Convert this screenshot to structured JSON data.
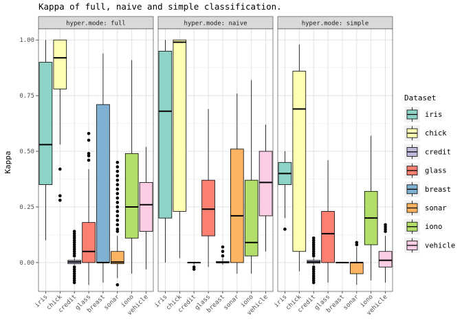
{
  "chart_data": {
    "type": "box",
    "title": "Kappa of full, naive and simple classification.",
    "ylabel": "Kappa",
    "xlabel": "",
    "ylim": [
      -0.13,
      1.05
    ],
    "y_ticks": [
      "0.00",
      "0.25",
      "0.50",
      "0.75",
      "1.00"
    ],
    "y_tick_values": [
      0,
      0.25,
      0.5,
      0.75,
      1.0
    ],
    "grid": true,
    "legend_position": "right",
    "legend_title": "Dataset",
    "categories": [
      "iris",
      "chick",
      "credit",
      "glass",
      "breast",
      "sonar",
      "iono",
      "vehicle"
    ],
    "colors": {
      "iris": "#8DD3C7",
      "chick": "#FFFFB3",
      "credit": "#BEBADA",
      "glass": "#FB8072",
      "breast": "#80B1D3",
      "sonar": "#FDB462",
      "iono": "#B3DE69",
      "vehicle": "#FCCDE5"
    },
    "facets": [
      {
        "strip": "hyper.mode: full",
        "boxes": [
          {
            "dataset": "iris",
            "whisker_low": 0.1,
            "q1": 0.35,
            "median": 0.53,
            "q3": 0.9,
            "whisker_high": 1.0,
            "outliers": []
          },
          {
            "dataset": "chick",
            "whisker_low": 0.53,
            "q1": 0.78,
            "median": 0.92,
            "q3": 1.0,
            "whisker_high": 1.0,
            "outliers": [
              0.42,
              0.3,
              0.28
            ]
          },
          {
            "dataset": "credit",
            "whisker_low": -0.01,
            "q1": -0.005,
            "median": 0.003,
            "q3": 0.01,
            "whisker_high": 0.02,
            "outliers": [
              0.14,
              0.13,
              0.12,
              0.11,
              0.1,
              0.09,
              0.08,
              0.07,
              0.06,
              0.05,
              0.04,
              0.03,
              -0.02,
              -0.03,
              -0.04,
              -0.05,
              -0.06,
              -0.07,
              -0.08,
              -0.09
            ]
          },
          {
            "dataset": "glass",
            "whisker_low": -0.1,
            "q1": 0.0,
            "median": 0.05,
            "q3": 0.18,
            "whisker_high": 0.42,
            "outliers": [
              0.58,
              0.55,
              0.49,
              0.48,
              0.46
            ]
          },
          {
            "dataset": "breast",
            "whisker_low": -0.09,
            "q1": 0.0,
            "median": 0.0,
            "q3": 0.71,
            "whisker_high": 0.94,
            "outliers": []
          },
          {
            "dataset": "sonar",
            "whisker_low": -0.07,
            "q1": -0.005,
            "median": 0.002,
            "q3": 0.05,
            "whisker_high": 0.12,
            "outliers": [
              0.45,
              0.43,
              0.41,
              0.39,
              0.37,
              0.35,
              0.33,
              0.31,
              0.29,
              0.27,
              0.25,
              0.23,
              0.21,
              0.19,
              0.17,
              0.15,
              0.14,
              -0.1
            ]
          },
          {
            "dataset": "iono",
            "whisker_low": -0.05,
            "q1": 0.11,
            "median": 0.25,
            "q3": 0.49,
            "whisker_high": 0.91,
            "outliers": []
          },
          {
            "dataset": "vehicle",
            "whisker_low": -0.03,
            "q1": 0.14,
            "median": 0.26,
            "q3": 0.36,
            "whisker_high": 0.52,
            "outliers": []
          }
        ]
      },
      {
        "strip": "hyper.mode: naive",
        "boxes": [
          {
            "dataset": "iris",
            "whisker_low": 0.0,
            "q1": 0.2,
            "median": 0.68,
            "q3": 0.95,
            "whisker_high": 1.0,
            "outliers": []
          },
          {
            "dataset": "chick",
            "whisker_low": 0.02,
            "q1": 0.23,
            "median": 0.99,
            "q3": 1.0,
            "whisker_high": 1.0,
            "outliers": []
          },
          {
            "dataset": "credit",
            "whisker_low": -0.01,
            "q1": 0.0,
            "median": 0.0,
            "q3": 0.0,
            "whisker_high": 0.0,
            "outliers": [
              -0.02,
              -0.03
            ]
          },
          {
            "dataset": "glass",
            "whisker_low": -0.02,
            "q1": 0.12,
            "median": 0.24,
            "q3": 0.37,
            "whisker_high": 0.69,
            "outliers": []
          },
          {
            "dataset": "breast",
            "whisker_low": -0.01,
            "q1": 0.0,
            "median": 0.0,
            "q3": 0.005,
            "whisker_high": 0.02,
            "outliers": [
              0.07,
              0.05,
              0.03
            ]
          },
          {
            "dataset": "sonar",
            "whisker_low": -0.05,
            "q1": 0.0,
            "median": 0.21,
            "q3": 0.51,
            "whisker_high": 0.76,
            "outliers": []
          },
          {
            "dataset": "iono",
            "whisker_low": -0.05,
            "q1": 0.03,
            "median": 0.09,
            "q3": 0.37,
            "whisker_high": 0.82,
            "outliers": []
          },
          {
            "dataset": "vehicle",
            "whisker_low": 0.05,
            "q1": 0.21,
            "median": 0.36,
            "q3": 0.5,
            "whisker_high": 0.62,
            "outliers": []
          }
        ]
      },
      {
        "strip": "hyper.mode: simple",
        "boxes": [
          {
            "dataset": "iris",
            "whisker_low": 0.2,
            "q1": 0.35,
            "median": 0.4,
            "q3": 0.45,
            "whisker_high": 0.5,
            "outliers": [
              0.15
            ]
          },
          {
            "dataset": "chick",
            "whisker_low": -0.04,
            "q1": 0.05,
            "median": 0.69,
            "q3": 0.86,
            "whisker_high": 0.98,
            "outliers": []
          },
          {
            "dataset": "credit",
            "whisker_low": -0.01,
            "q1": -0.003,
            "median": 0.003,
            "q3": 0.01,
            "whisker_high": 0.02,
            "outliers": [
              0.11,
              0.1,
              0.09,
              0.08,
              0.07,
              0.06,
              0.05,
              0.04,
              0.03,
              -0.02,
              -0.03,
              -0.04,
              -0.05,
              -0.06,
              -0.07,
              -0.08,
              -0.09
            ]
          },
          {
            "dataset": "glass",
            "whisker_low": -0.09,
            "q1": 0.0,
            "median": 0.13,
            "q3": 0.23,
            "whisker_high": 0.46,
            "outliers": []
          },
          {
            "dataset": "breast",
            "whisker_low": 0.0,
            "q1": 0.0,
            "median": 0.0,
            "q3": 0.0,
            "whisker_high": 0.0,
            "outliers": []
          },
          {
            "dataset": "sonar",
            "whisker_low": -0.1,
            "q1": -0.05,
            "median": 0.0,
            "q3": 0.0,
            "whisker_high": 0.07,
            "outliers": [
              0.09,
              0.08
            ]
          },
          {
            "dataset": "iono",
            "whisker_low": -0.08,
            "q1": 0.08,
            "median": 0.2,
            "q3": 0.32,
            "whisker_high": 0.57,
            "outliers": []
          },
          {
            "dataset": "vehicle",
            "whisker_low": -0.09,
            "q1": -0.02,
            "median": 0.01,
            "q3": 0.05,
            "whisker_high": 0.12,
            "outliers": [
              0.17,
              0.16,
              0.15,
              0.14
            ]
          }
        ]
      }
    ]
  }
}
